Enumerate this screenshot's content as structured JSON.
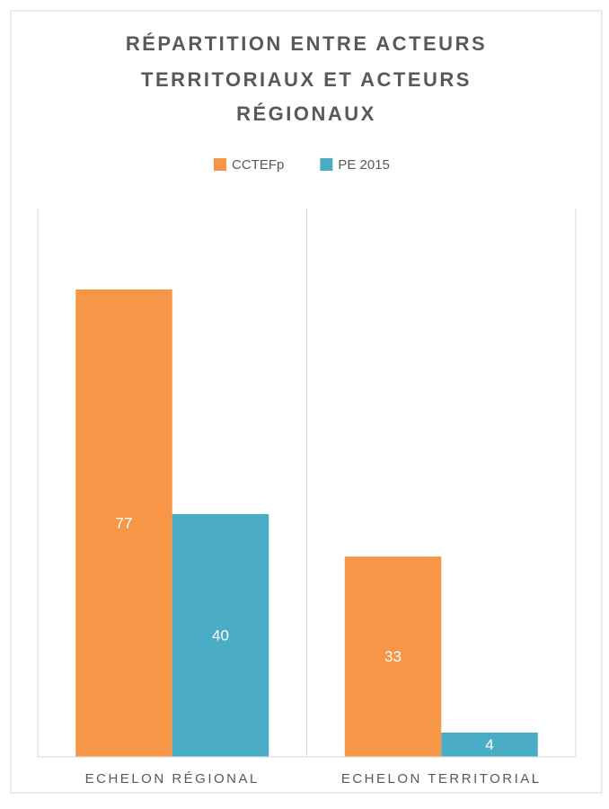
{
  "chart_data": {
    "type": "bar",
    "title": [
      "RÉPARTITION ENTRE ACTEURS",
      "TERRITORIAUX ET ACTEURS",
      "RÉGIONAUX"
    ],
    "categories": [
      "ECHELON RÉGIONAL",
      "ECHELON TERRITORIAL"
    ],
    "series": [
      {
        "name": "CCTEFp",
        "color": "#f79646",
        "values": [
          77,
          33
        ]
      },
      {
        "name": "PE 2015",
        "color": "#4bacc6",
        "values": [
          40,
          4
        ]
      }
    ],
    "legend": "top"
  }
}
